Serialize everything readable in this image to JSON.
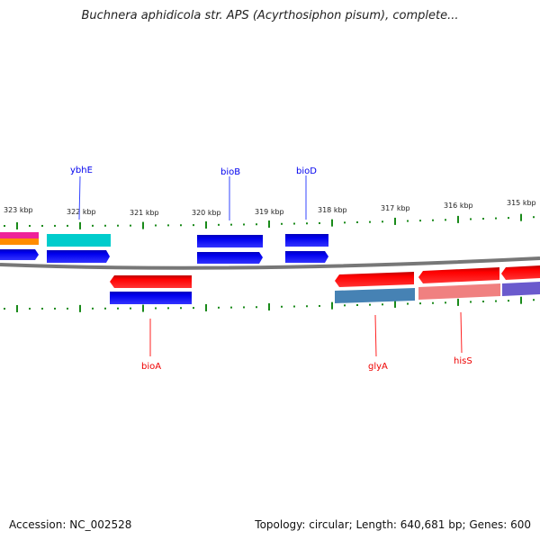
{
  "title": "Buchnera aphidicola str. APS (Acyrthosiphon pisum), complete...",
  "footer": {
    "accession": "Accession: NC_002528",
    "summary": "Topology: circular; Length: 640,681 bp; Genes: 600"
  },
  "ruler": [
    "323 kbp",
    "322 kbp",
    "321 kbp",
    "320 kbp",
    "319 kbp",
    "318 kbp",
    "317 kbp",
    "316 kbp",
    "315 kbp"
  ],
  "gene_labels": {
    "ybhE": "ybhE",
    "bioB": "bioB",
    "bioD": "bioD",
    "bioA": "bioA",
    "glyA": "glyA",
    "hisS": "hisS"
  },
  "colors": {
    "forward": "#0000ee",
    "reverse": "#ee0000",
    "backbone": "#888888",
    "ticks": "#1a8a1a"
  }
}
